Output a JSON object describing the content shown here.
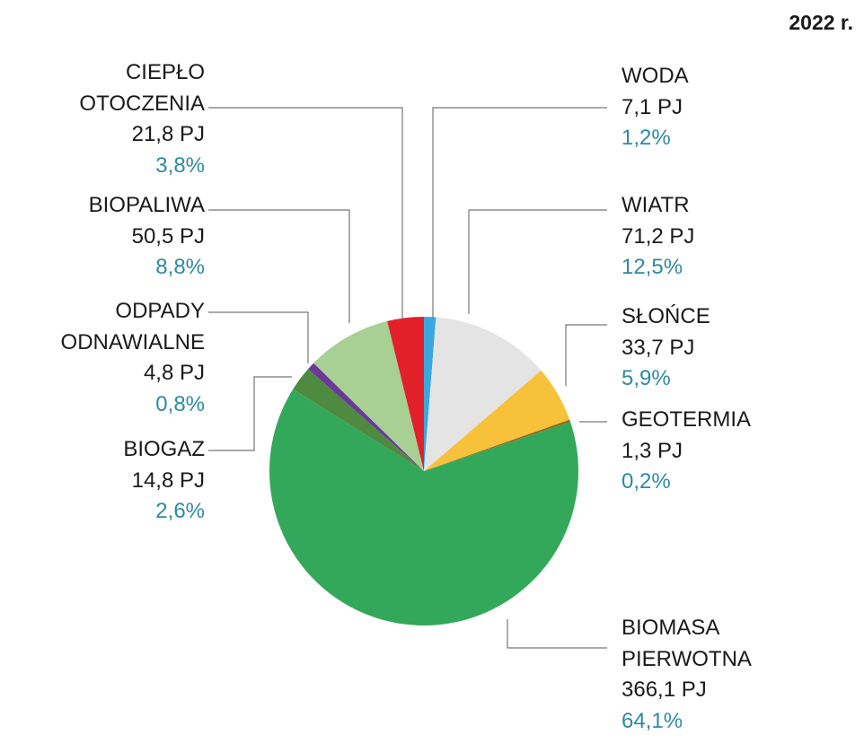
{
  "chart_data": {
    "type": "pie",
    "title": "2022 r.",
    "unit": "PJ",
    "slices": [
      {
        "name_lines": [
          "WODA"
        ],
        "value": "7,1 PJ",
        "v": 7.1,
        "percent": "1,2%",
        "color": "#3aa8de"
      },
      {
        "name_lines": [
          "WIATR"
        ],
        "value": "71,2 PJ",
        "v": 71.2,
        "percent": "12,5%",
        "color": "#e4e4e4"
      },
      {
        "name_lines": [
          "SŁOŃCE"
        ],
        "value": "33,7 PJ",
        "v": 33.7,
        "percent": "5,9%",
        "color": "#f8c13a"
      },
      {
        "name_lines": [
          "GEOTERMIA"
        ],
        "value": "1,3 PJ",
        "v": 1.3,
        "percent": "0,2%",
        "color": "#8a6a1e"
      },
      {
        "name_lines": [
          "BIOMASA",
          "PIERWOTNA"
        ],
        "value": "366,1 PJ",
        "v": 366.1,
        "percent": "64,1%",
        "color": "#34a85a"
      },
      {
        "name_lines": [
          "BIOGAZ"
        ],
        "value": "14,8 PJ",
        "v": 14.8,
        "percent": "2,6%",
        "color": "#4e8a3f"
      },
      {
        "name_lines": [
          "ODPADY",
          "ODNAWIALNE"
        ],
        "value": "4,8 PJ",
        "v": 4.8,
        "percent": "0,8%",
        "color": "#6b3a98"
      },
      {
        "name_lines": [
          "BIOPALIWA"
        ],
        "value": "50,5 PJ",
        "v": 50.5,
        "percent": "8,8%",
        "color": "#a8cf94"
      },
      {
        "name_lines": [
          "CIEPŁO",
          "OTOCZENIA"
        ],
        "value": "21,8 PJ",
        "v": 21.8,
        "percent": "3,8%",
        "color": "#e2202a"
      }
    ]
  }
}
